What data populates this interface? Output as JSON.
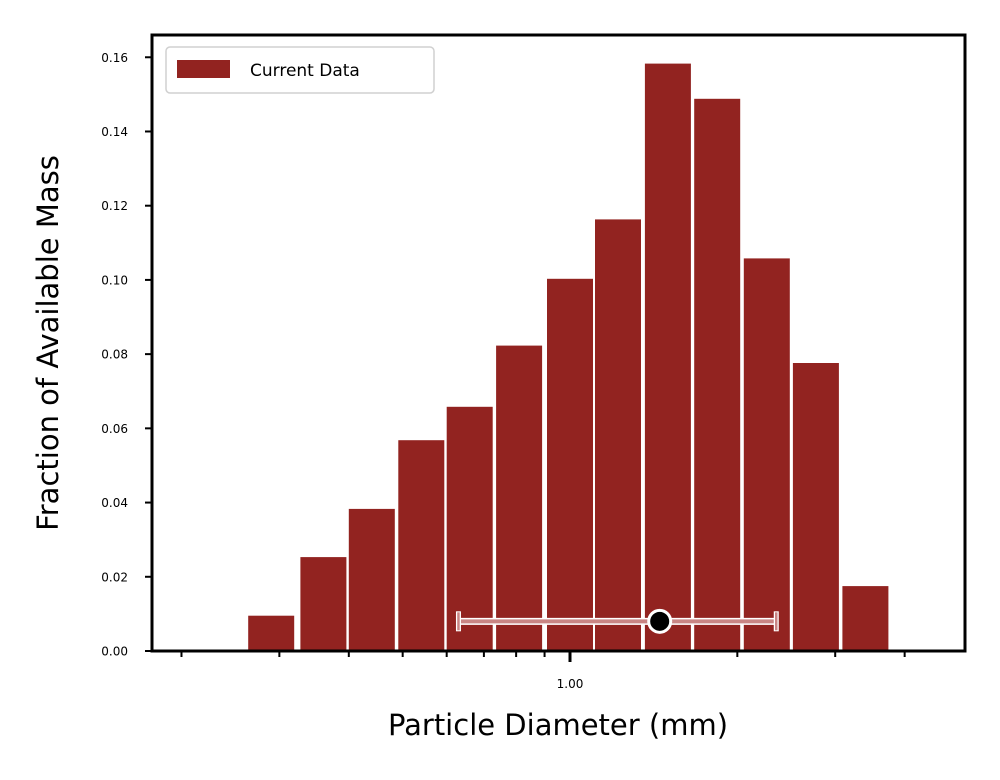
{
  "chart_data": {
    "type": "bar",
    "title": "",
    "xlabel": "Particle Diameter (mm)",
    "ylabel": "Fraction of Available Mass",
    "x_scale": "log",
    "x_tick_labels": [
      "1.00"
    ],
    "y_ticks": [
      "0.00",
      "0.02",
      "0.04",
      "0.06",
      "0.08",
      "0.10",
      "0.12",
      "0.14",
      "0.16"
    ],
    "ylim": [
      0,
      0.166
    ],
    "grid": false,
    "legend_position": "top-left",
    "series": [
      {
        "name": "Current Data",
        "color": "#922320",
        "bar_diameters_mm": [
          0.29,
          0.36,
          0.44,
          0.54,
          0.66,
          0.81,
          1.0,
          1.22,
          1.5,
          1.84,
          2.26,
          2.77,
          3.4
        ],
        "values": [
          0.0095,
          0.0253,
          0.0383,
          0.0568,
          0.0658,
          0.0823,
          0.1003,
          0.1163,
          0.1583,
          0.1488,
          0.1058,
          0.0776,
          0.0175
        ]
      }
    ],
    "summary_marker": {
      "center_mm": 1.45,
      "range_mm": [
        0.63,
        2.35
      ],
      "y": 0.008,
      "marker_color": "#000000",
      "errorbar_color": "#c98584"
    }
  }
}
